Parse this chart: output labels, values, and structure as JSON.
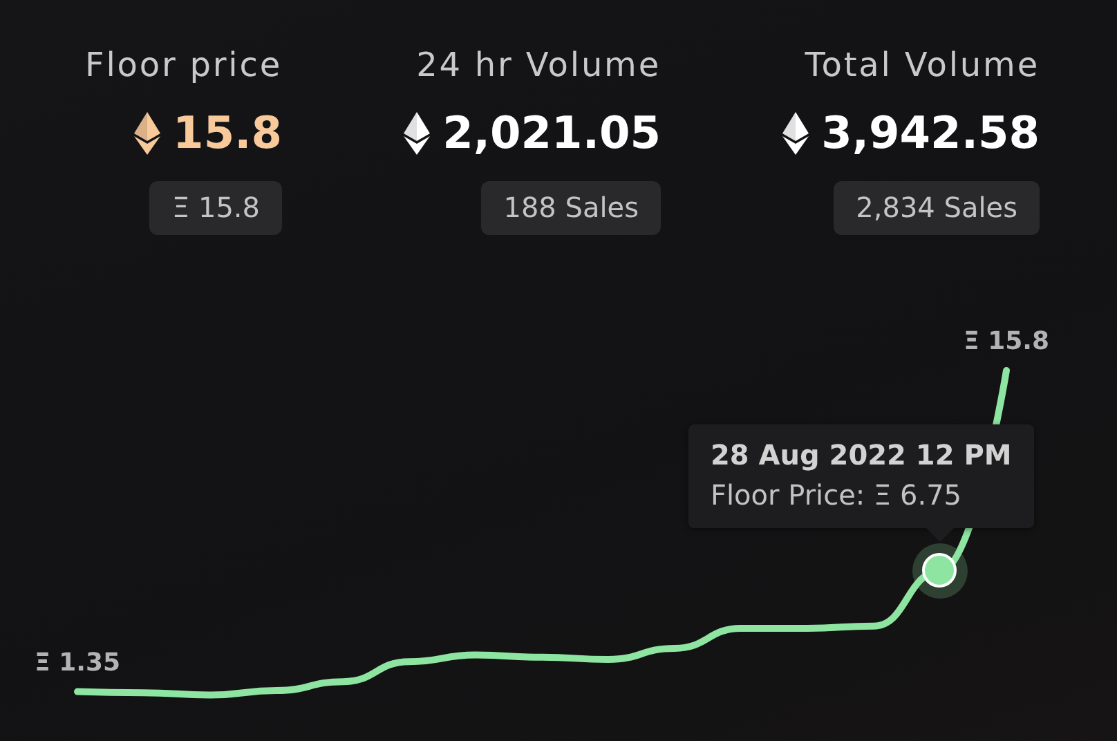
{
  "chart_data": [
    {
      "type": "other",
      "categories": [
        "Floor price",
        "24 hr Volume",
        "Total Volume"
      ],
      "value_labels": [
        "15.8",
        "2,021.05",
        "3,942.58"
      ],
      "colors": [
        "#f8c99b",
        "#ffffff",
        "#ffffff"
      ],
      "annotations": [
        "Ξ 15.8",
        "188 Sales",
        "2,834 Sales"
      ]
    },
    {
      "type": "line",
      "categories": [
        null,
        null,
        null,
        null,
        null,
        null,
        null,
        null,
        null,
        null,
        null,
        null,
        null,
        null,
        null
      ],
      "values": [
        1.35,
        1.3,
        1.2,
        1.4,
        1.8,
        2.7,
        3.0,
        2.9,
        2.8,
        3.3,
        4.2,
        4.2,
        4.3,
        6.75,
        15.8
      ],
      "color": "#8de5a1",
      "value_labels": [
        "Ξ 1.35",
        null,
        null,
        null,
        null,
        null,
        null,
        null,
        null,
        null,
        null,
        null,
        null,
        "28 Aug 2022 12 PM\nFloor Price: Ξ 6.75",
        "Ξ 15.8"
      ],
      "tick_labels": false
    }
  ]
}
